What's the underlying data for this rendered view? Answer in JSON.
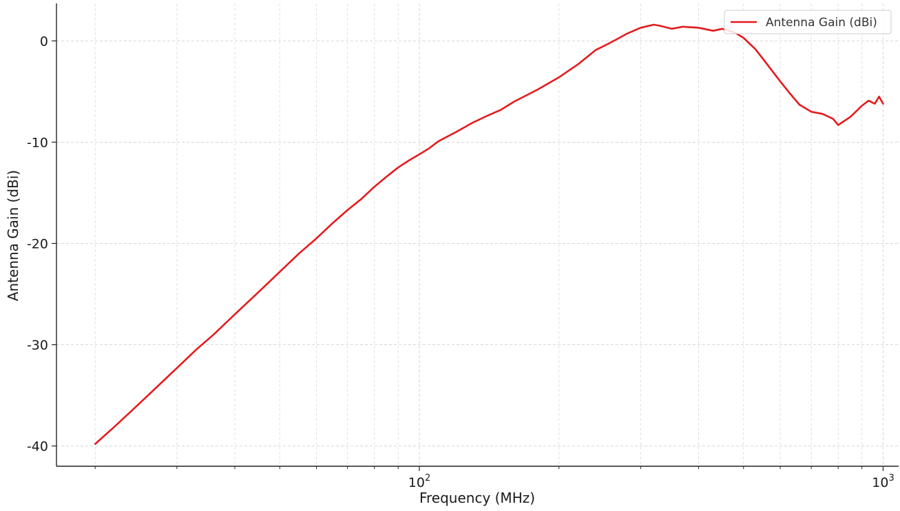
{
  "chart_data": {
    "type": "line",
    "title": "",
    "xlabel": "Frequency (MHz)",
    "ylabel": "Antenna Gain (dBi)",
    "x_scale": "log",
    "xlim": [
      16.5,
      1080
    ],
    "ylim": [
      -42,
      3.7
    ],
    "grid": true,
    "legend_position": "top-right",
    "x_major_ticks": [
      100,
      1000
    ],
    "x_major_tick_labels": [
      "10^2",
      "10^3"
    ],
    "x_minor_ticks": [
      20,
      30,
      40,
      50,
      60,
      70,
      80,
      90,
      200,
      300,
      400,
      500,
      600,
      700,
      800,
      900
    ],
    "y_ticks": [
      0,
      -10,
      -20,
      -30,
      -40
    ],
    "y_tick_labels": [
      "0",
      "-10",
      "-20",
      "-30",
      "-40"
    ],
    "series": [
      {
        "name": "Antenna Gain (dBi)",
        "color": "#e41a1c",
        "x": [
          20,
          22,
          24,
          26,
          28,
          30,
          33,
          36,
          40,
          45,
          50,
          55,
          60,
          65,
          70,
          75,
          80,
          85,
          90,
          95,
          100,
          105,
          110,
          120,
          130,
          140,
          150,
          160,
          180,
          200,
          220,
          240,
          250,
          260,
          280,
          300,
          320,
          330,
          350,
          370,
          400,
          430,
          450,
          480,
          500,
          530,
          560,
          600,
          630,
          660,
          700,
          740,
          780,
          800,
          850,
          900,
          930,
          960,
          980,
          1000
        ],
        "y": [
          -39.8,
          -38.1,
          -36.5,
          -35.0,
          -33.6,
          -32.3,
          -30.5,
          -29.0,
          -27.0,
          -24.8,
          -22.8,
          -21.0,
          -19.5,
          -18.0,
          -16.7,
          -15.6,
          -14.4,
          -13.4,
          -12.5,
          -11.8,
          -11.2,
          -10.6,
          -9.9,
          -9.0,
          -8.1,
          -7.4,
          -6.8,
          -6.0,
          -4.8,
          -3.6,
          -2.3,
          -0.9,
          -0.5,
          -0.1,
          0.7,
          1.3,
          1.6,
          1.5,
          1.2,
          1.4,
          1.3,
          1.0,
          1.2,
          0.8,
          0.3,
          -0.8,
          -2.2,
          -4.0,
          -5.2,
          -6.3,
          -7.0,
          -7.2,
          -7.7,
          -8.3,
          -7.5,
          -6.4,
          -5.9,
          -6.2,
          -5.5,
          -6.2
        ]
      }
    ]
  }
}
